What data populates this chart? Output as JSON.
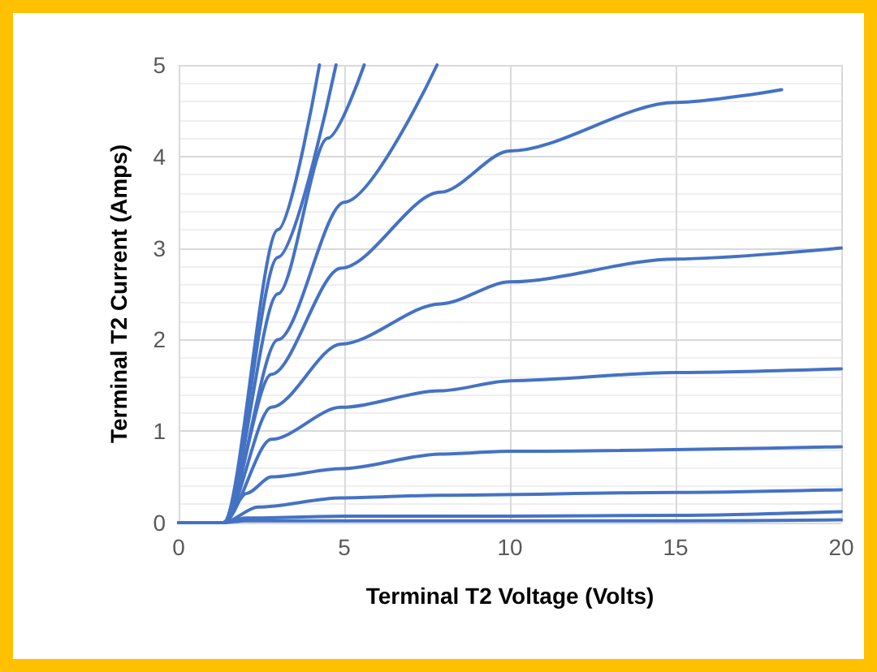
{
  "chart_data": {
    "type": "line",
    "xlabel": "Terminal T2 Voltage (Volts)",
    "ylabel": "Terminal T2 Current (Amps)",
    "xlim": [
      0,
      20
    ],
    "ylim": [
      0,
      5
    ],
    "xticks": [
      0,
      5,
      10,
      15,
      20
    ],
    "yticks": [
      0,
      1,
      2,
      3,
      4,
      5
    ],
    "grid": true,
    "marker": "none",
    "line_style": "solid",
    "series": [
      {
        "color": "#4472c4",
        "x": [
          0,
          1.35,
          2,
          5,
          10,
          15,
          20
        ],
        "values": [
          0,
          0,
          0.02,
          0.02,
          0.02,
          0.02,
          0.03
        ]
      },
      {
        "color": "#4472c4",
        "x": [
          0,
          1.35,
          2,
          5,
          10,
          15,
          20
        ],
        "values": [
          0,
          0,
          0.05,
          0.07,
          0.07,
          0.08,
          0.12
        ]
      },
      {
        "color": "#4472c4",
        "x": [
          0,
          1.35,
          2.4,
          4.9,
          7.9,
          15,
          20
        ],
        "values": [
          0,
          0,
          0.17,
          0.27,
          0.3,
          0.33,
          0.36
        ]
      },
      {
        "color": "#4472c4",
        "x": [
          0,
          1.35,
          2.05,
          2.8,
          4.9,
          7.9,
          10,
          20
        ],
        "values": [
          0,
          0,
          0.32,
          0.5,
          0.59,
          0.75,
          0.78,
          0.83
        ]
      },
      {
        "color": "#4472c4",
        "x": [
          0,
          1.35,
          2.8,
          4.9,
          7.9,
          10,
          15,
          20
        ],
        "values": [
          0,
          0,
          0.91,
          1.26,
          1.44,
          1.55,
          1.64,
          1.68
        ]
      },
      {
        "color": "#4472c4",
        "x": [
          0,
          1.35,
          2.8,
          4.9,
          7.9,
          10,
          15,
          20
        ],
        "values": [
          0,
          0,
          1.26,
          1.95,
          2.39,
          2.63,
          2.88,
          3
        ]
      },
      {
        "color": "#4472c4",
        "x": [
          0,
          1.35,
          2.8,
          4.9,
          7.9,
          10,
          15,
          18.2
        ],
        "values": [
          0,
          0,
          1.62,
          2.78,
          3.61,
          4.06,
          4.59,
          4.73
        ]
      },
      {
        "color": "#4472c4",
        "x": [
          0,
          1.35,
          3,
          5,
          7.8
        ],
        "values": [
          0,
          0,
          2,
          3.5,
          5
        ]
      },
      {
        "color": "#4472c4",
        "x": [
          0,
          1.35,
          3,
          4.5,
          5.6
        ],
        "values": [
          0,
          0,
          2.5,
          4.2,
          5
        ]
      },
      {
        "color": "#4472c4",
        "x": [
          0,
          1.35,
          3,
          4.75
        ],
        "values": [
          0,
          0,
          2.9,
          5
        ]
      },
      {
        "color": "#4472c4",
        "x": [
          0,
          1.35,
          3,
          4.25
        ],
        "values": [
          0,
          0,
          3.2,
          5
        ]
      }
    ]
  }
}
